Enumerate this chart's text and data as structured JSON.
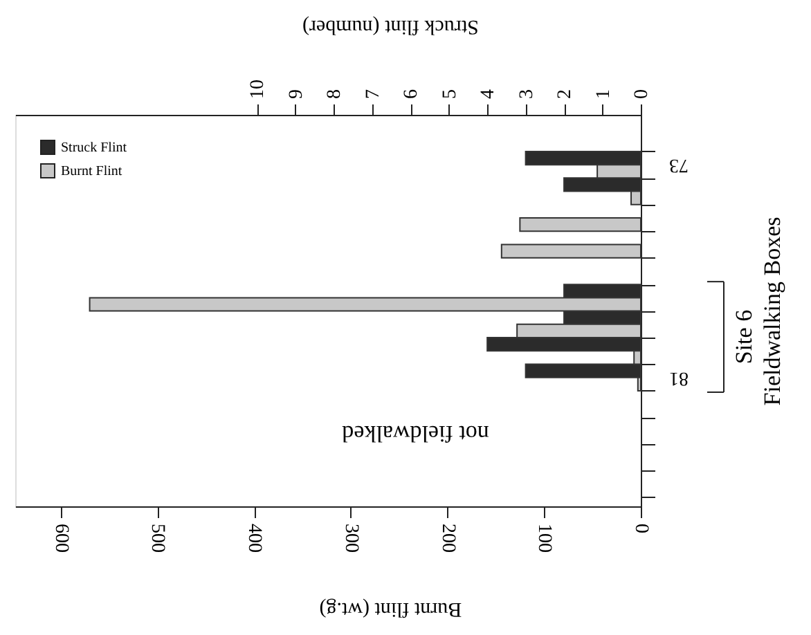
{
  "chart_data": {
    "type": "bar",
    "orientation": "horizontal",
    "ylabel": "Fieldwalking Boxes",
    "xlabel": "Burnt flint (wt.g)",
    "x2label": "Struck flint (number)",
    "categories": [
      "73",
      null,
      null,
      null,
      null,
      null,
      null,
      null,
      "81",
      null,
      null,
      null,
      null
    ],
    "series": [
      {
        "name": "Struck Flint",
        "color": "#2b2b2b",
        "axis": "x2",
        "values": [
          3,
          2,
          0,
          0,
          0,
          2,
          2,
          4,
          3,
          null,
          null,
          null,
          null
        ]
      },
      {
        "name": "Burnt Flint",
        "color": "#c8c8c8",
        "values": [
          45,
          10,
          125,
          144,
          0,
          570,
          128,
          7,
          3,
          null,
          null,
          null,
          null
        ]
      }
    ],
    "xlim": [
      647,
      0
    ],
    "xticks": [
      0,
      100,
      200,
      300,
      400,
      500,
      600
    ],
    "x2lim": [
      16.3,
      0
    ],
    "x2ticks": [
      0,
      1,
      2,
      3,
      4,
      5,
      6,
      7,
      8,
      9,
      10
    ],
    "annotations": [
      "not fieldwalked",
      "Site 6"
    ],
    "legend": "top left",
    "grid": false
  }
}
